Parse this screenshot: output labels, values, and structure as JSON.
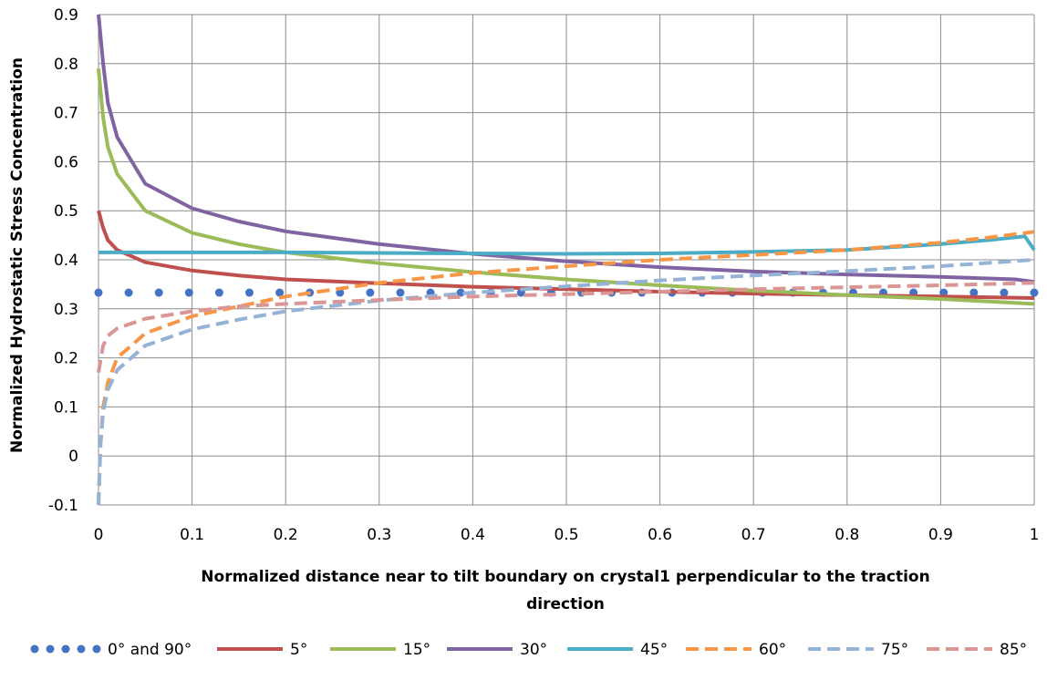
{
  "chart_data": {
    "type": "line",
    "title": "",
    "xlabel_line1": "Normalized distance near to tilt boundary on crystal1 perpendicular to the traction",
    "xlabel_line2": "direction",
    "ylabel": "Normalized Hydrostatic  Stress  Concentration",
    "xlim": [
      0,
      1
    ],
    "ylim": [
      -0.1,
      0.9
    ],
    "xticks": [
      "0",
      "0.1",
      "0.2",
      "0.3",
      "0.4",
      "0.5",
      "0.6",
      "0.7",
      "0.8",
      "0.9",
      "1"
    ],
    "yticks": [
      "-0.1",
      "0",
      "0.1",
      "0.2",
      "0.3",
      "0.4",
      "0.5",
      "0.6",
      "0.7",
      "0.8",
      "0.9"
    ],
    "grid": true,
    "legend_position": "bottom",
    "series": [
      {
        "name": "0° and 90°",
        "color": "#4472C4",
        "style": "dots",
        "points": [
          [
            0,
            0.333
          ],
          [
            0.1,
            0.333
          ],
          [
            0.2,
            0.333
          ],
          [
            0.3,
            0.333
          ],
          [
            0.4,
            0.333
          ],
          [
            0.5,
            0.333
          ],
          [
            0.6,
            0.333
          ],
          [
            0.7,
            0.333
          ],
          [
            0.8,
            0.333
          ],
          [
            0.9,
            0.333
          ],
          [
            1,
            0.333
          ]
        ]
      },
      {
        "name": "5°",
        "color": "#C0504D",
        "style": "solid",
        "points": [
          [
            0,
            0.5
          ],
          [
            0.005,
            0.465
          ],
          [
            0.01,
            0.44
          ],
          [
            0.02,
            0.42
          ],
          [
            0.05,
            0.395
          ],
          [
            0.1,
            0.378
          ],
          [
            0.15,
            0.368
          ],
          [
            0.2,
            0.36
          ],
          [
            0.3,
            0.352
          ],
          [
            0.4,
            0.345
          ],
          [
            0.5,
            0.34
          ],
          [
            0.6,
            0.335
          ],
          [
            0.7,
            0.331
          ],
          [
            0.8,
            0.328
          ],
          [
            0.9,
            0.325
          ],
          [
            1,
            0.322
          ]
        ]
      },
      {
        "name": "15°",
        "color": "#9BBB59",
        "style": "solid",
        "points": [
          [
            0,
            0.79
          ],
          [
            0.005,
            0.69
          ],
          [
            0.01,
            0.63
          ],
          [
            0.02,
            0.575
          ],
          [
            0.05,
            0.5
          ],
          [
            0.1,
            0.455
          ],
          [
            0.15,
            0.432
          ],
          [
            0.2,
            0.415
          ],
          [
            0.3,
            0.393
          ],
          [
            0.4,
            0.375
          ],
          [
            0.5,
            0.36
          ],
          [
            0.6,
            0.348
          ],
          [
            0.7,
            0.337
          ],
          [
            0.8,
            0.328
          ],
          [
            0.9,
            0.32
          ],
          [
            1,
            0.31
          ]
        ]
      },
      {
        "name": "30°",
        "color": "#8064A2",
        "style": "solid",
        "points": [
          [
            0,
            0.9
          ],
          [
            0.005,
            0.8
          ],
          [
            0.01,
            0.72
          ],
          [
            0.02,
            0.65
          ],
          [
            0.05,
            0.555
          ],
          [
            0.1,
            0.505
          ],
          [
            0.15,
            0.478
          ],
          [
            0.2,
            0.458
          ],
          [
            0.3,
            0.432
          ],
          [
            0.4,
            0.412
          ],
          [
            0.5,
            0.397
          ],
          [
            0.6,
            0.385
          ],
          [
            0.7,
            0.376
          ],
          [
            0.8,
            0.37
          ],
          [
            0.9,
            0.365
          ],
          [
            0.98,
            0.36
          ],
          [
            1,
            0.355
          ]
        ]
      },
      {
        "name": "45°",
        "color": "#4BACC6",
        "style": "solid",
        "points": [
          [
            0,
            0.415
          ],
          [
            0.1,
            0.415
          ],
          [
            0.2,
            0.415
          ],
          [
            0.3,
            0.414
          ],
          [
            0.4,
            0.413
          ],
          [
            0.5,
            0.412
          ],
          [
            0.6,
            0.413
          ],
          [
            0.7,
            0.416
          ],
          [
            0.8,
            0.42
          ],
          [
            0.9,
            0.432
          ],
          [
            0.95,
            0.44
          ],
          [
            0.99,
            0.448
          ],
          [
            1,
            0.42
          ]
        ]
      },
      {
        "name": "60°",
        "color": "#F79646",
        "style": "dashed",
        "points": [
          [
            0,
            -0.1
          ],
          [
            0.002,
            0.02
          ],
          [
            0.005,
            0.1
          ],
          [
            0.01,
            0.15
          ],
          [
            0.02,
            0.2
          ],
          [
            0.05,
            0.25
          ],
          [
            0.1,
            0.285
          ],
          [
            0.15,
            0.305
          ],
          [
            0.2,
            0.325
          ],
          [
            0.3,
            0.353
          ],
          [
            0.4,
            0.373
          ],
          [
            0.5,
            0.387
          ],
          [
            0.6,
            0.4
          ],
          [
            0.7,
            0.41
          ],
          [
            0.8,
            0.42
          ],
          [
            0.9,
            0.435
          ],
          [
            0.95,
            0.445
          ],
          [
            1,
            0.457
          ]
        ]
      },
      {
        "name": "75°",
        "color": "#95B3D7",
        "style": "dashed",
        "points": [
          [
            0,
            -0.1
          ],
          [
            0.002,
            0.02
          ],
          [
            0.005,
            0.09
          ],
          [
            0.01,
            0.135
          ],
          [
            0.02,
            0.175
          ],
          [
            0.05,
            0.225
          ],
          [
            0.1,
            0.258
          ],
          [
            0.15,
            0.278
          ],
          [
            0.2,
            0.295
          ],
          [
            0.3,
            0.317
          ],
          [
            0.4,
            0.333
          ],
          [
            0.5,
            0.346
          ],
          [
            0.6,
            0.358
          ],
          [
            0.7,
            0.368
          ],
          [
            0.8,
            0.377
          ],
          [
            0.9,
            0.387
          ],
          [
            1,
            0.4
          ]
        ]
      },
      {
        "name": "85°",
        "color": "#D99694",
        "style": "dashed",
        "points": [
          [
            0,
            0.17
          ],
          [
            0.005,
            0.225
          ],
          [
            0.01,
            0.245
          ],
          [
            0.02,
            0.26
          ],
          [
            0.05,
            0.28
          ],
          [
            0.1,
            0.295
          ],
          [
            0.15,
            0.305
          ],
          [
            0.2,
            0.31
          ],
          [
            0.3,
            0.318
          ],
          [
            0.4,
            0.325
          ],
          [
            0.5,
            0.33
          ],
          [
            0.6,
            0.335
          ],
          [
            0.7,
            0.34
          ],
          [
            0.8,
            0.344
          ],
          [
            0.9,
            0.348
          ],
          [
            1,
            0.353
          ]
        ]
      }
    ]
  }
}
